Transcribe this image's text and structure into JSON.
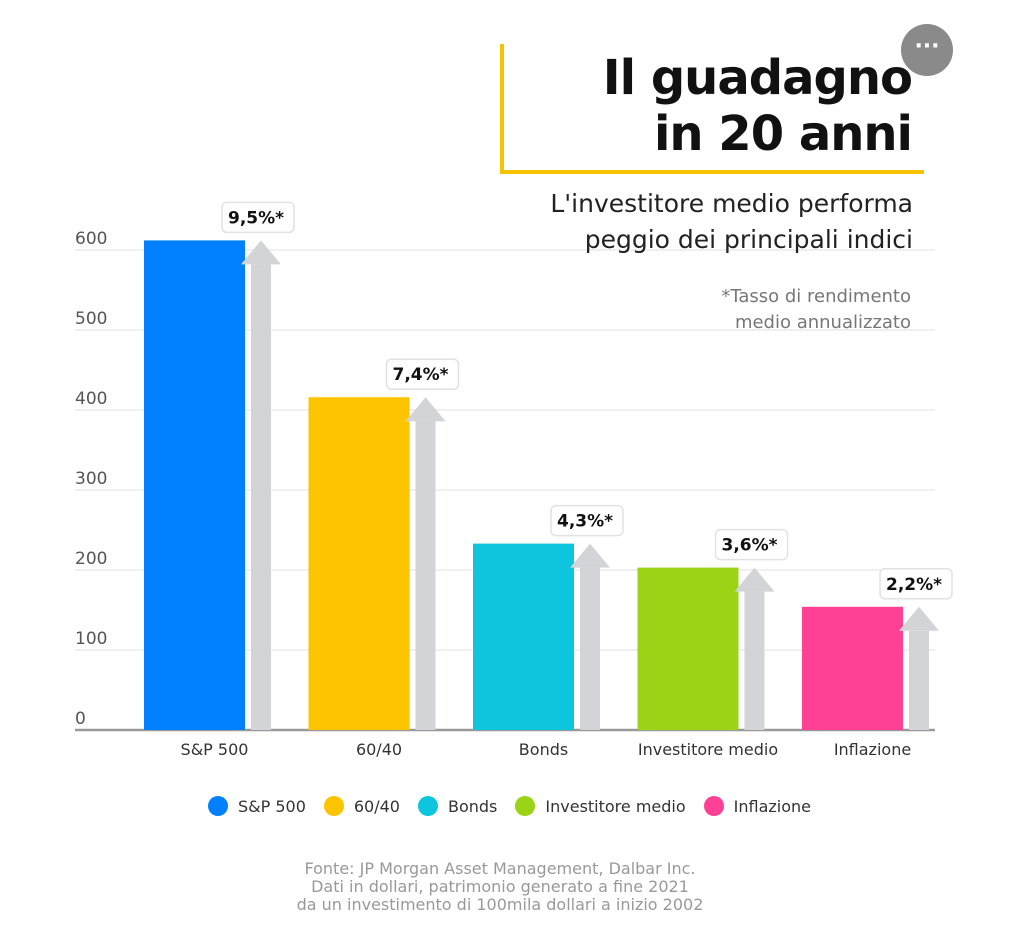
{
  "title_lines": [
    "Il guadagno",
    "in 20 anni"
  ],
  "subtitle_lines": [
    "L'investitore medio performa",
    "peggio dei principali indici"
  ],
  "note_lines": [
    "*Tasso di rendimento",
    "medio annualizzato"
  ],
  "menu_button": "···",
  "chart_data": {
    "type": "bar",
    "categories": [
      "S&P 500",
      "60/40",
      "Bonds",
      "Investitore medio",
      "Inflazione"
    ],
    "values": [
      612,
      416,
      233,
      203,
      154
    ],
    "annotations": [
      "9,5%*",
      "7,4%*",
      "4,3%*",
      "3,6%*",
      "2,2%*"
    ],
    "colors": [
      "#0080ff",
      "#ffc400",
      "#0ec5de",
      "#9bd416",
      "#ff4195"
    ],
    "ylim": [
      0,
      600
    ],
    "yticks": [
      0,
      100,
      200,
      300,
      400,
      500,
      600
    ],
    "grid": true,
    "legend": "bottom"
  },
  "footer_lines": [
    "Fonte: JP Morgan Asset Management, Dalbar Inc.",
    "Dati in dollari, patrimonio generato a fine 2021",
    "da un investimento di 100mila dollari a inizio 2002"
  ]
}
